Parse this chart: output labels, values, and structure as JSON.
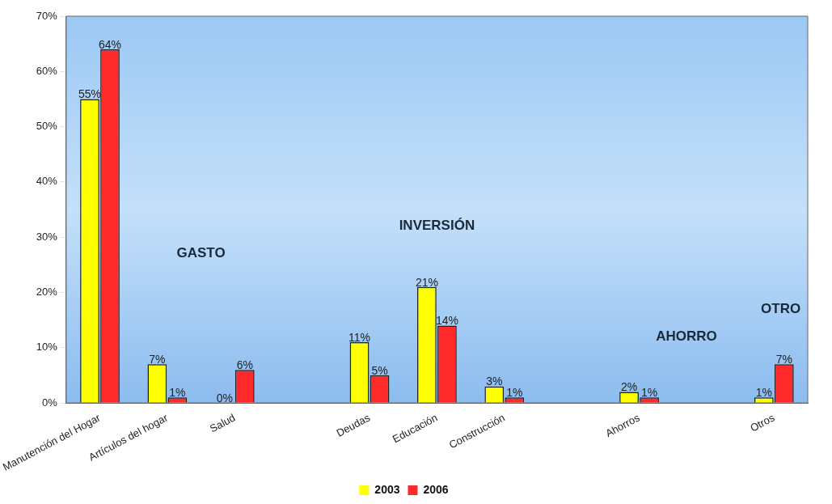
{
  "chart_data": {
    "type": "bar",
    "categories": [
      "Manutención del Hogar",
      "Artículos del hogar",
      "Salud",
      null,
      "Deudas",
      "Educación",
      "Construcción",
      null,
      "Ahorros",
      null,
      "Otros"
    ],
    "series": [
      {
        "name": "2003",
        "color": "#ffff00",
        "values": [
          55,
          7,
          0,
          null,
          11,
          21,
          3,
          null,
          2,
          null,
          1
        ],
        "value_labels": [
          "55%",
          "7%",
          "0%",
          null,
          "11%",
          "21%",
          "3%",
          null,
          "2%",
          null,
          "1%"
        ]
      },
      {
        "name": "2006",
        "color": "#ff2a2a",
        "values": [
          64,
          1,
          6,
          null,
          5,
          14,
          1,
          null,
          1,
          null,
          7
        ],
        "value_labels": [
          "64%",
          "1%",
          "6%",
          null,
          "5%",
          "14%",
          "1%",
          null,
          "1%",
          null,
          "7%"
        ]
      }
    ],
    "ylim": [
      0,
      70
    ],
    "yticks": [
      {
        "value": 0,
        "label": "0%"
      },
      {
        "value": 10,
        "label": "10%"
      },
      {
        "value": 20,
        "label": "20%"
      },
      {
        "value": 30,
        "label": "30%"
      },
      {
        "value": 40,
        "label": "40%"
      },
      {
        "value": 50,
        "label": "50%"
      },
      {
        "value": 60,
        "label": "60%"
      },
      {
        "value": 70,
        "label": "70%"
      }
    ],
    "annotations": [
      "GASTO",
      "INVERSIÓN",
      "AHORRO",
      "OTRO"
    ],
    "legend": "bottom",
    "grid": false
  }
}
